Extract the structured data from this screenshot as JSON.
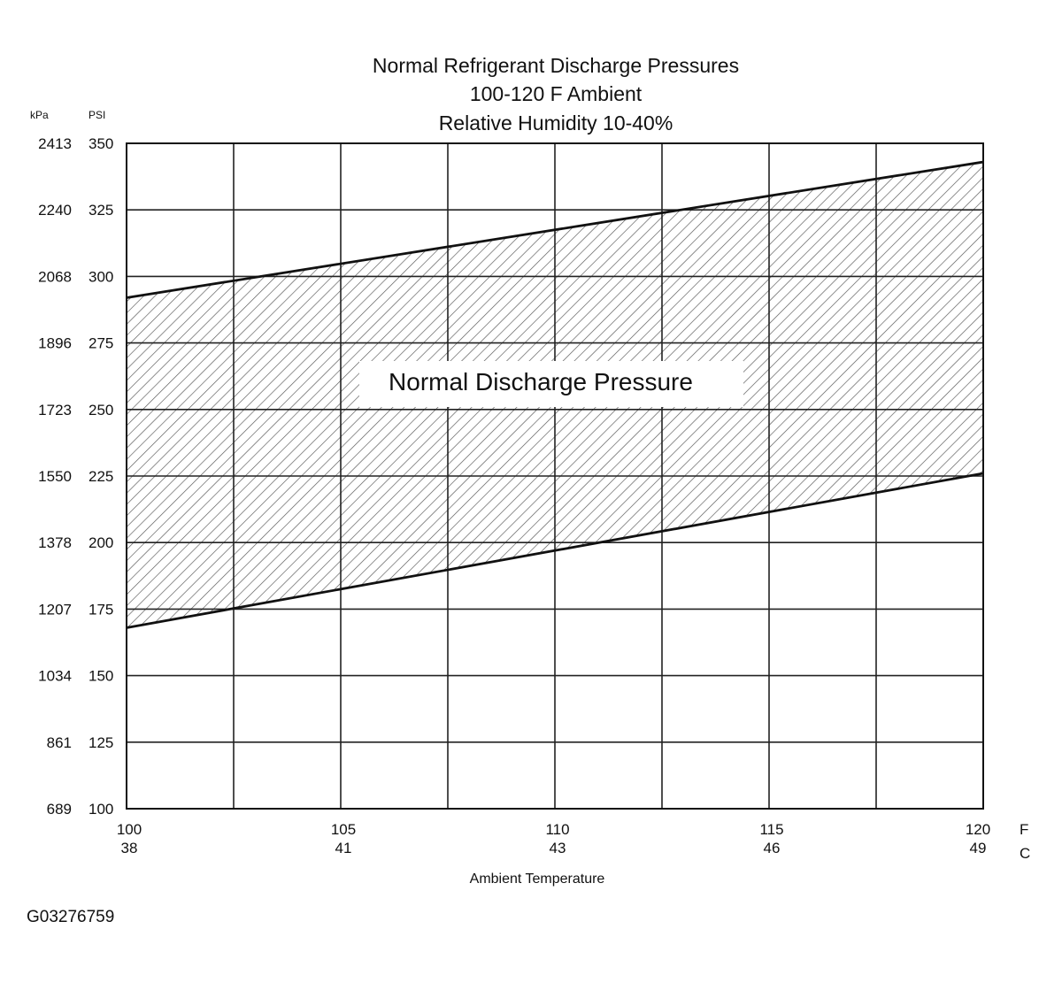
{
  "chart_data": {
    "type": "area",
    "title": [
      "Normal  Refrigerant  Discharge  Pressures",
      "100-120 F Ambient",
      "Relative Humidity 10-40%"
    ],
    "xlabel": "Ambient Temperature",
    "x_unit_primary": "F",
    "x_unit_secondary": "C",
    "y_unit_secondary": "kPa",
    "y_unit_primary": "PSI",
    "xlim": [
      100,
      120
    ],
    "ylim": [
      100,
      350
    ],
    "x_ticks": [
      {
        "f": "100",
        "c": "38"
      },
      {
        "f": "105",
        "c": "41"
      },
      {
        "f": "110",
        "c": "43"
      },
      {
        "f": "115",
        "c": "46"
      },
      {
        "f": "120",
        "c": "49"
      }
    ],
    "y_ticks": [
      {
        "psi": "350",
        "kpa": "2413"
      },
      {
        "psi": "325",
        "kpa": "2240"
      },
      {
        "psi": "300",
        "kpa": "2068"
      },
      {
        "psi": "275",
        "kpa": "1896"
      },
      {
        "psi": "250",
        "kpa": "1723"
      },
      {
        "psi": "225",
        "kpa": "1550"
      },
      {
        "psi": "200",
        "kpa": "1378"
      },
      {
        "psi": "175",
        "kpa": "1207"
      },
      {
        "psi": "150",
        "kpa": "1034"
      },
      {
        "psi": "125",
        "kpa": "861"
      },
      {
        "psi": "100",
        "kpa": "689"
      }
    ],
    "vertical_gridlines_f": [
      100,
      102.5,
      105,
      107.5,
      110,
      112.5,
      115,
      117.5,
      120
    ],
    "upper_bound": {
      "x": [
        100,
        120
      ],
      "y": [
        292,
        343
      ]
    },
    "lower_bound": {
      "x": [
        100,
        120
      ],
      "y": [
        168,
        226
      ]
    },
    "band_label": "Normal Discharge Pressure",
    "grid": true,
    "fill": "hatched"
  },
  "figure_id": "G03276759",
  "colors": {
    "line": "#111111",
    "grid": "#222222",
    "hatch": "#555555",
    "background": "#ffffff"
  }
}
